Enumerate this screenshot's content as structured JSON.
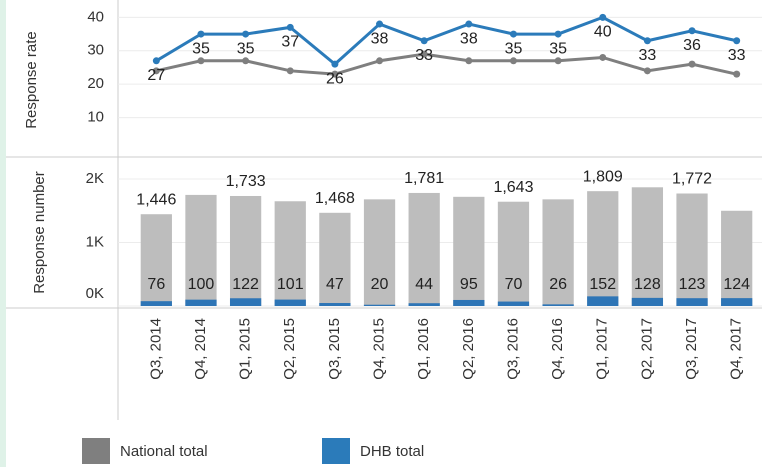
{
  "chart_data": [
    {
      "type": "line",
      "ylabel": "Response rate",
      "categories": [
        "Q3, 2014",
        "Q4, 2014",
        "Q1, 2015",
        "Q2, 2015",
        "Q3, 2015",
        "Q4, 2015",
        "Q1, 2016",
        "Q2, 2016",
        "Q3, 2016",
        "Q4, 2016",
        "Q1, 2017",
        "Q2, 2017",
        "Q3, 2017",
        "Q4, 2017"
      ],
      "series": [
        {
          "name": "National total",
          "color": "#7f7f7f",
          "values": [
            24,
            27,
            27,
            24,
            23,
            27,
            29,
            27,
            27,
            27,
            28,
            24,
            26,
            23
          ]
        },
        {
          "name": "DHB total",
          "color": "#2b7bba",
          "values": [
            27,
            35,
            35,
            37,
            26,
            38,
            33,
            38,
            35,
            35,
            40,
            33,
            36,
            33
          ]
        }
      ],
      "ylim": [
        0,
        44
      ],
      "yticks": [
        10,
        20,
        30,
        40
      ]
    },
    {
      "type": "bar",
      "ylabel": "Response number",
      "series": [
        {
          "color": "#bdbdbd",
          "values": [
            1446,
            1750,
            1733,
            1650,
            1468,
            1680,
            1781,
            1720,
            1643,
            1680,
            1809,
            1870,
            1772,
            1500
          ],
          "value_labels": [
            "1,446",
            null,
            "1,733",
            null,
            "1,468",
            null,
            "1,781",
            null,
            "1,643",
            null,
            "1,809",
            null,
            "1,772",
            null
          ]
        },
        {
          "color": "#2e75b6",
          "values": [
            76,
            100,
            122,
            101,
            47,
            20,
            44,
            95,
            70,
            26,
            152,
            128,
            123,
            124
          ]
        }
      ],
      "ylim": [
        0,
        2300
      ],
      "yticks": [
        {
          "value": 0,
          "label": "0K"
        },
        {
          "value": 1000,
          "label": "1K"
        },
        {
          "value": 2000,
          "label": "2K"
        }
      ]
    }
  ]
}
